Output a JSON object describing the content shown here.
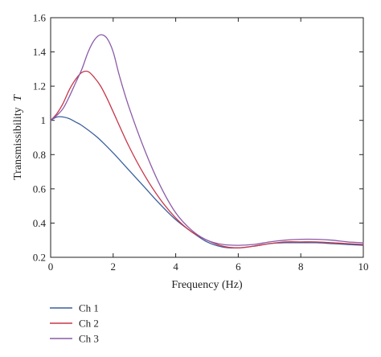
{
  "chart_data": {
    "type": "line",
    "title": "",
    "xlabel": "Frequency (Hz)",
    "ylabel_main": "Transmissibility",
    "ylabel_symbol": "T",
    "xlim": [
      0,
      10
    ],
    "ylim": [
      0.2,
      1.6
    ],
    "xticks": [
      0,
      2,
      4,
      6,
      8,
      10
    ],
    "yticks": [
      0.2,
      0.4,
      0.6,
      0.8,
      1,
      1.2,
      1.4,
      1.6
    ],
    "xtick_labels": [
      "0",
      "2",
      "4",
      "6",
      "8",
      "10"
    ],
    "ytick_labels": [
      "0.2",
      "0.4",
      "0.6",
      "0.8",
      "1",
      "1.2",
      "1.4",
      "1.6"
    ],
    "grid": false,
    "legend_position": "bottom-left, below plot",
    "series": [
      {
        "name": "Ch 1",
        "color": "#3a5f9e",
        "x": [
          0,
          0.2,
          0.4,
          0.6,
          0.8,
          1.0,
          1.5,
          2.0,
          2.5,
          3.0,
          3.5,
          4.0,
          4.5,
          5.0,
          5.5,
          6.0,
          6.5,
          7.0,
          7.5,
          8.0,
          8.5,
          9.0,
          9.5,
          10.0
        ],
        "y": [
          1.0,
          1.02,
          1.02,
          1.01,
          0.99,
          0.97,
          0.9,
          0.81,
          0.71,
          0.61,
          0.51,
          0.42,
          0.35,
          0.29,
          0.26,
          0.255,
          0.265,
          0.28,
          0.285,
          0.285,
          0.285,
          0.28,
          0.275,
          0.27
        ]
      },
      {
        "name": "Ch 2",
        "color": "#c8364a",
        "x": [
          0,
          0.2,
          0.4,
          0.6,
          0.8,
          1.0,
          1.2,
          1.4,
          1.6,
          1.8,
          2.0,
          2.5,
          3.0,
          3.5,
          4.0,
          4.5,
          5.0,
          5.5,
          6.0,
          6.5,
          7.0,
          7.5,
          8.0,
          8.5,
          9.0,
          9.5,
          10.0
        ],
        "y": [
          1.0,
          1.04,
          1.1,
          1.18,
          1.24,
          1.28,
          1.285,
          1.25,
          1.2,
          1.13,
          1.05,
          0.85,
          0.68,
          0.54,
          0.43,
          0.35,
          0.3,
          0.265,
          0.255,
          0.265,
          0.28,
          0.29,
          0.29,
          0.29,
          0.285,
          0.28,
          0.275
        ]
      },
      {
        "name": "Ch 3",
        "color": "#8a5ba8",
        "x": [
          0,
          0.2,
          0.4,
          0.6,
          0.8,
          1.0,
          1.2,
          1.4,
          1.6,
          1.8,
          2.0,
          2.2,
          2.5,
          3.0,
          3.5,
          4.0,
          4.5,
          5.0,
          5.5,
          6.0,
          6.5,
          7.0,
          7.5,
          8.0,
          8.5,
          9.0,
          9.5,
          10.0
        ],
        "y": [
          1.0,
          1.03,
          1.07,
          1.14,
          1.22,
          1.3,
          1.4,
          1.47,
          1.5,
          1.48,
          1.4,
          1.26,
          1.08,
          0.83,
          0.62,
          0.46,
          0.36,
          0.3,
          0.275,
          0.27,
          0.275,
          0.29,
          0.3,
          0.305,
          0.305,
          0.3,
          0.29,
          0.285
        ]
      }
    ]
  }
}
